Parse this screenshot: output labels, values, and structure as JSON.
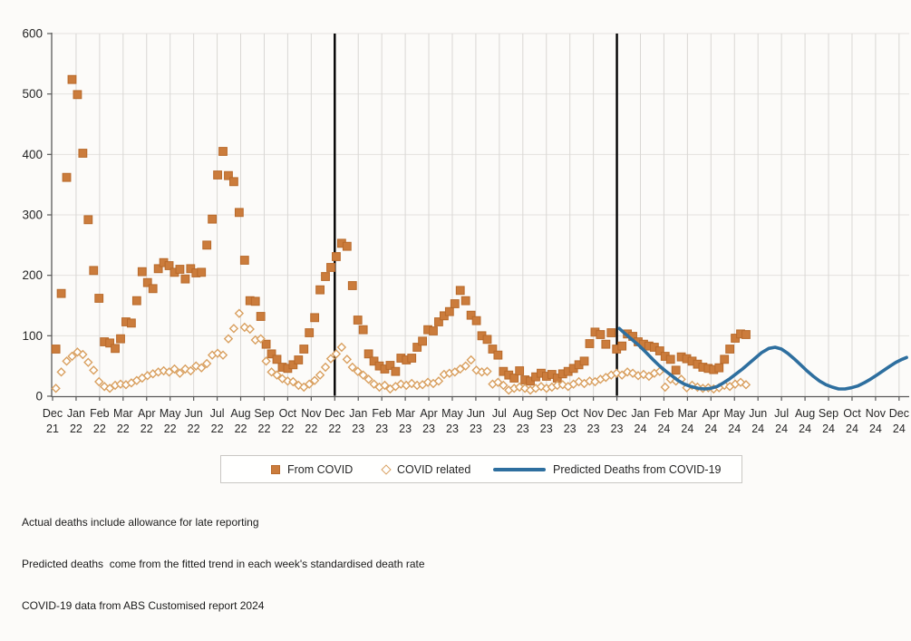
{
  "chart_data": {
    "type": "scatter",
    "title": "",
    "xlabel": "",
    "ylabel": "",
    "ylim": [
      0,
      600
    ],
    "y_ticks": [
      0,
      100,
      200,
      300,
      400,
      500,
      600
    ],
    "grid": true,
    "legend_position": "bottom",
    "x_axis_months": [
      [
        "Dec",
        "21"
      ],
      [
        "Jan",
        "22"
      ],
      [
        "Feb",
        "22"
      ],
      [
        "Mar",
        "22"
      ],
      [
        "Apr",
        "22"
      ],
      [
        "May",
        "22"
      ],
      [
        "Jun",
        "22"
      ],
      [
        "Jul",
        "22"
      ],
      [
        "Aug",
        "22"
      ],
      [
        "Sep",
        "22"
      ],
      [
        "Oct",
        "22"
      ],
      [
        "Nov",
        "22"
      ],
      [
        "Dec",
        "22"
      ],
      [
        "Jan",
        "23"
      ],
      [
        "Feb",
        "23"
      ],
      [
        "Mar",
        "23"
      ],
      [
        "Apr",
        "23"
      ],
      [
        "May",
        "23"
      ],
      [
        "Jun",
        "23"
      ],
      [
        "Jul",
        "23"
      ],
      [
        "Aug",
        "23"
      ],
      [
        "Sep",
        "23"
      ],
      [
        "Oct",
        "23"
      ],
      [
        "Nov",
        "23"
      ],
      [
        "Dec",
        "23"
      ],
      [
        "Jan",
        "24"
      ],
      [
        "Feb",
        "24"
      ],
      [
        "Mar",
        "24"
      ],
      [
        "Apr",
        "24"
      ],
      [
        "May",
        "24"
      ],
      [
        "Jun",
        "24"
      ],
      [
        "Jul",
        "24"
      ],
      [
        "Aug",
        "24"
      ],
      [
        "Sep",
        "24"
      ],
      [
        "Oct",
        "24"
      ],
      [
        "Nov",
        "24"
      ],
      [
        "Dec",
        "24"
      ]
    ],
    "event_line_months": [
      12,
      24
    ],
    "series": [
      {
        "name": "From COVID",
        "kind": "square",
        "color": "#cb7c3c",
        "start_month": 0.14,
        "step_months": 0.2293,
        "values": [
          78,
          170,
          362,
          524,
          499,
          402,
          292,
          208,
          162,
          90,
          88,
          79,
          95,
          123,
          121,
          158,
          206,
          188,
          178,
          211,
          221,
          216,
          205,
          210,
          194,
          211,
          204,
          205,
          250,
          293,
          366,
          405,
          365,
          355,
          304,
          225,
          158,
          157,
          132,
          86,
          70,
          61,
          48,
          46,
          52,
          60,
          78,
          105,
          130,
          176,
          198,
          213,
          231,
          253,
          248,
          183,
          126,
          110,
          70,
          58,
          50,
          45,
          51,
          41,
          63,
          60,
          63,
          81,
          91,
          110,
          108,
          123,
          133,
          140,
          153,
          175,
          158,
          134,
          125,
          100,
          94,
          78,
          68,
          41,
          35,
          30,
          42,
          27,
          25,
          32,
          38,
          33,
          36,
          30,
          37,
          41,
          46,
          52,
          58,
          87,
          106,
          102,
          86,
          105,
          78,
          83,
          103,
          99,
          90,
          86,
          83,
          81,
          75,
          66,
          61,
          43,
          65,
          62,
          58,
          53,
          48,
          46,
          44,
          47,
          61,
          78,
          96,
          103,
          102
        ]
      },
      {
        "name": "COVID related",
        "kind": "diamond",
        "color": "#d9a060",
        "start_month": 0.14,
        "step_months": 0.2293,
        "values": [
          13,
          40,
          58,
          66,
          73,
          69,
          56,
          43,
          24,
          16,
          13,
          18,
          20,
          19,
          22,
          26,
          30,
          34,
          37,
          40,
          42,
          40,
          45,
          38,
          45,
          42,
          50,
          47,
          54,
          68,
          71,
          68,
          95,
          112,
          137,
          114,
          111,
          93,
          95,
          58,
          40,
          35,
          29,
          25,
          24,
          18,
          15,
          20,
          26,
          35,
          48,
          62,
          70,
          81,
          61,
          48,
          41,
          35,
          28,
          20,
          15,
          18,
          12,
          16,
          20,
          18,
          21,
          18,
          19,
          23,
          21,
          25,
          36,
          38,
          40,
          45,
          50,
          60,
          43,
          40,
          41,
          20,
          23,
          18,
          10,
          13,
          15,
          13,
          10,
          13,
          16,
          13,
          15,
          18,
          19,
          16,
          20,
          24,
          21,
          25,
          24,
          28,
          31,
          35,
          38,
          35,
          40,
          38,
          34,
          36,
          33,
          38,
          41,
          15,
          28,
          25,
          28,
          14,
          18,
          15,
          13,
          14,
          12,
          14,
          18,
          16,
          20,
          23,
          19
        ]
      },
      {
        "name": "Predicted Deaths from COVID-19",
        "kind": "line",
        "color": "#2e6f9f",
        "points": [
          [
            24.1,
            112
          ],
          [
            24.36,
            103
          ],
          [
            24.63,
            94
          ],
          [
            24.94,
            84
          ],
          [
            25.25,
            72
          ],
          [
            25.52,
            61
          ],
          [
            25.79,
            51
          ],
          [
            26.06,
            42
          ],
          [
            26.33,
            34
          ],
          [
            26.6,
            26
          ],
          [
            26.87,
            20
          ],
          [
            27.14,
            16
          ],
          [
            27.45,
            13
          ],
          [
            27.72,
            12
          ],
          [
            27.99,
            13
          ],
          [
            28.26,
            16
          ],
          [
            28.53,
            22
          ],
          [
            28.8,
            29
          ],
          [
            29.07,
            37
          ],
          [
            29.34,
            45
          ],
          [
            29.61,
            54
          ],
          [
            29.88,
            63
          ],
          [
            30.15,
            72
          ],
          [
            30.46,
            79
          ],
          [
            30.73,
            81
          ],
          [
            31.0,
            78
          ],
          [
            31.27,
            71
          ],
          [
            31.54,
            62
          ],
          [
            31.81,
            52
          ],
          [
            32.08,
            42
          ],
          [
            32.35,
            33
          ],
          [
            32.62,
            25
          ],
          [
            32.89,
            19
          ],
          [
            33.16,
            15
          ],
          [
            33.43,
            12
          ],
          [
            33.7,
            12
          ],
          [
            33.97,
            14
          ],
          [
            34.24,
            17
          ],
          [
            34.51,
            22
          ],
          [
            34.78,
            28
          ],
          [
            35.05,
            35
          ],
          [
            35.32,
            42
          ],
          [
            35.59,
            49
          ],
          [
            35.86,
            56
          ],
          [
            36.13,
            61
          ],
          [
            36.32,
            64
          ]
        ]
      }
    ],
    "colors": {
      "square_fill": "#cb7c3c",
      "square_stroke": "#b8692a",
      "diamond_stroke": "#d9a060",
      "predicted_line": "#2e6f9f",
      "event_line": "#000000",
      "grid_vertical": "#d9d7d4",
      "grid_horizontal": "#e4e2df",
      "axis": "#595959"
    }
  },
  "legend": {
    "items": [
      {
        "label": "From COVID"
      },
      {
        "label": "COVID related"
      },
      {
        "label": "Predicted Deaths from COVID-19"
      }
    ]
  },
  "footnotes": {
    "line1": "Actual deaths include allowance for late reporting",
    "line2": "Predicted deaths  come from the fitted trend in each week's standardised death rate",
    "line3": "COVID-19 data from ABS Customised report 2024"
  }
}
